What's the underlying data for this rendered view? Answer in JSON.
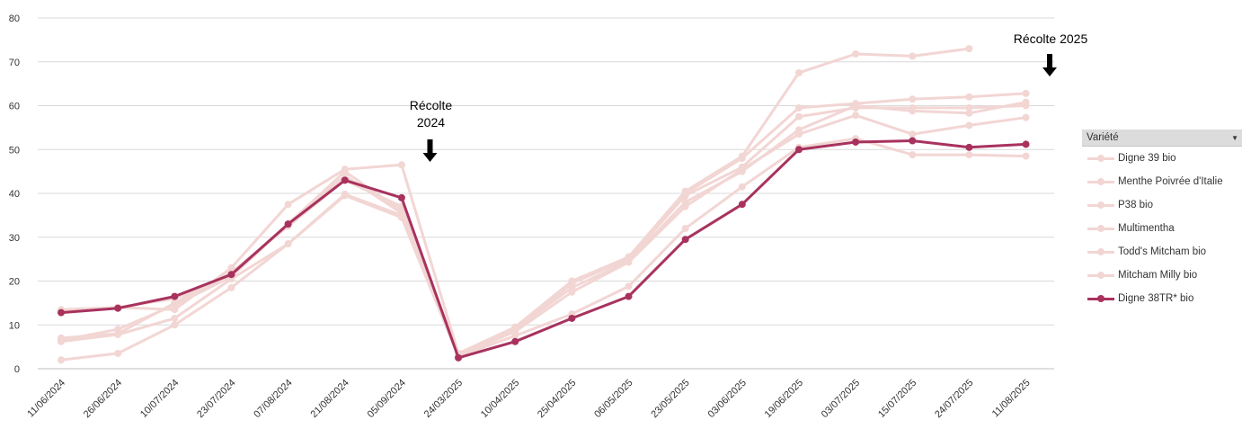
{
  "chart_data": {
    "type": "line",
    "title": "",
    "xlabel": "",
    "ylabel": "",
    "ylim": [
      0,
      80
    ],
    "yticks": [
      0,
      10,
      20,
      30,
      40,
      50,
      60,
      70,
      80
    ],
    "grid": true,
    "legend_position": "right",
    "categories": [
      "11/06/2024",
      "26/06/2024",
      "10/07/2024",
      "23/07/2024",
      "07/08/2024",
      "21/08/2024",
      "05/09/2024",
      "24/03/2025",
      "10/04/2025",
      "25/04/2025",
      "06/05/2025",
      "23/05/2025",
      "03/06/2025",
      "19/06/2025",
      "03/07/2025",
      "15/07/2025",
      "24/07/2025",
      "11/08/2025"
    ],
    "series": [
      {
        "name": "Digne 39 bio",
        "color": "#f2d6d4",
        "values": [
          13.5,
          14.0,
          13.5,
          23.0,
          37.5,
          45.5,
          46.5,
          3.5,
          9.5,
          20.0,
          25.5,
          40.5,
          48.5,
          67.5,
          71.8,
          71.3,
          73.0,
          null
        ]
      },
      {
        "name": "Menthe Poivrée d'Italie",
        "color": "#f2d6d4",
        "values": [
          13.0,
          14.0,
          16.0,
          21.0,
          33.0,
          44.0,
          35.5,
          3.5,
          9.0,
          19.5,
          25.5,
          40.0,
          48.0,
          59.5,
          60.5,
          61.5,
          62.0,
          62.8
        ]
      },
      {
        "name": "P38 bio",
        "color": "#f2d6d4",
        "values": [
          7.0,
          8.0,
          15.0,
          22.0,
          32.5,
          43.0,
          37.0,
          3.5,
          8.5,
          19.5,
          25.0,
          39.5,
          46.0,
          57.5,
          59.5,
          59.5,
          59.5,
          60.0
        ]
      },
      {
        "name": "Multimentha",
        "color": "#f2d6d4",
        "values": [
          6.5,
          9.0,
          14.5,
          21.0,
          33.0,
          45.0,
          36.0,
          3.0,
          9.0,
          18.5,
          24.5,
          38.0,
          45.0,
          54.5,
          60.0,
          58.8,
          58.3,
          60.8
        ]
      },
      {
        "name": "Todd's Mitcham bio",
        "color": "#f2d6d4",
        "values": [
          6.2,
          7.8,
          11.5,
          20.5,
          28.5,
          39.8,
          35.0,
          3.0,
          8.5,
          17.5,
          24.3,
          37.0,
          45.5,
          53.5,
          57.8,
          53.5,
          55.5,
          57.3
        ]
      },
      {
        "name": "Mitcham Milly bio",
        "color": "#f2d6d4",
        "values": [
          2.0,
          3.5,
          10.0,
          18.5,
          28.5,
          39.5,
          34.5,
          2.8,
          7.5,
          12.5,
          18.8,
          32.0,
          41.5,
          50.5,
          52.5,
          48.8,
          48.8,
          48.5
        ]
      },
      {
        "name": "Digne 38TR* bio",
        "color": "#a8325e",
        "values": [
          12.8,
          13.8,
          16.5,
          21.5,
          33.0,
          43.0,
          39.0,
          2.5,
          6.2,
          11.5,
          16.5,
          29.5,
          37.5,
          50.0,
          51.7,
          52.0,
          50.5,
          51.2
        ]
      }
    ],
    "annotations": [
      {
        "text_lines": [
          "Récolte",
          "2024"
        ],
        "x_between": [
          "05/09/2024",
          "24/03/2025"
        ],
        "arrow": "down"
      },
      {
        "text_lines": [
          "Récolte 2025"
        ],
        "x_after": "11/08/2025",
        "arrow": "down"
      }
    ]
  },
  "legend": {
    "header": "Variété"
  }
}
